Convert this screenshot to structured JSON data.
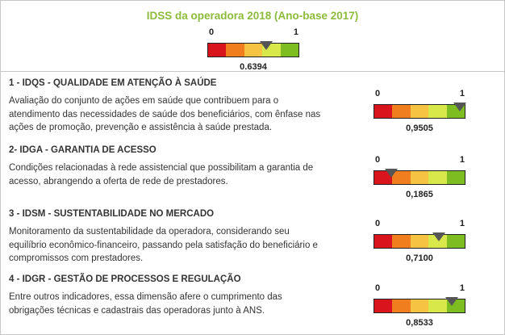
{
  "title": "IDSS da operadora 2018 (Ano-base 2017)",
  "overall": {
    "min_label": "0",
    "max_label": "1",
    "value": 0.6394,
    "value_text": "0.6394"
  },
  "scale_colors": [
    "#d9141c",
    "#f07d1e",
    "#f7c342",
    "#d8e84b",
    "#7dbd22"
  ],
  "sections": [
    {
      "heading": "1 - IDQS - QUALIDADE EM ATENÇÃO À SAÚDE",
      "description": "Avaliação do conjunto de ações em saúde que contribuem para o atendimento das necessidades de saúde dos beneficiários, com ênfase nas ações de promoção, prevenção e assistência à saúde prestada.",
      "gauge": {
        "min_label": "0",
        "max_label": "1",
        "value": 0.9505,
        "value_text": "0,9505"
      }
    },
    {
      "heading": "2- IDGA - GARANTIA DE ACESSO",
      "description": "Condições relacionadas à rede assistencial que possibilitam a garantia de acesso, abrangendo a oferta de rede de prestadores.",
      "gauge": {
        "min_label": "0",
        "max_label": "1",
        "value": 0.1865,
        "value_text": "0,1865"
      }
    },
    {
      "heading": "3 - IDSM - SUSTENTABILIDADE NO MERCADO",
      "description": "Monitoramento da sustentabilidade da operadora, considerando seu equilíbrio econômico-financeiro, passando pela satisfação do beneficiário e compromissos com prestadores.",
      "gauge": {
        "min_label": "0",
        "max_label": "1",
        "value": 0.71,
        "value_text": "0,7100"
      }
    },
    {
      "heading": "4 - IDGR - GESTÃO DE PROCESSOS E REGULAÇÃO",
      "description": "Entre outros indicadores, essa dimensão afere o cumprimento das obrigações técnicas e cadastrais das operadoras junto à ANS.",
      "gauge": {
        "min_label": "0",
        "max_label": "1",
        "value": 0.8533,
        "value_text": "0,8533"
      }
    }
  ]
}
